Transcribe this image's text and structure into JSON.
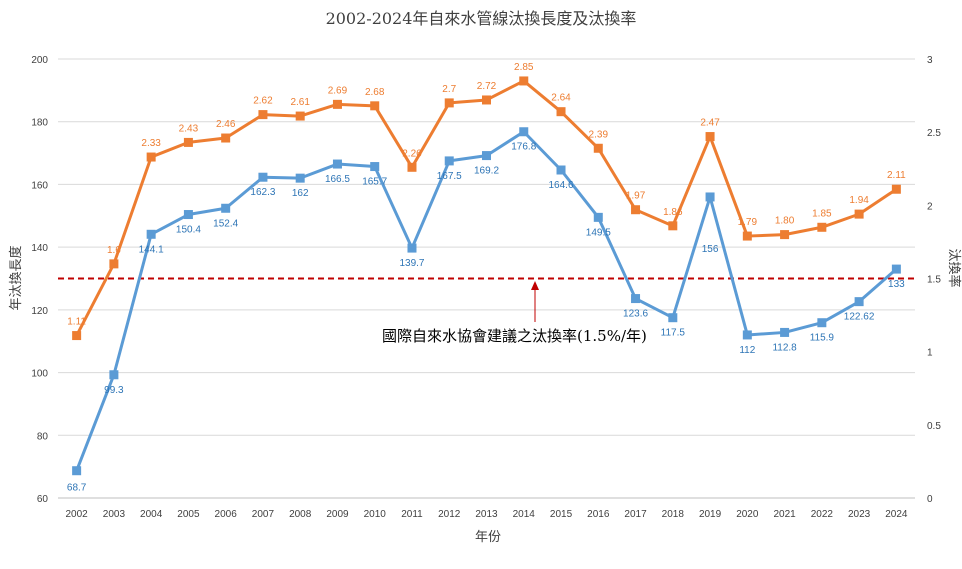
{
  "chart_data": {
    "type": "line",
    "title": "2002-2024年自來水管線汰換長度及汰換率",
    "xlabel": "年份",
    "ylabel": "年汰換長度",
    "y2label": "汰換率",
    "categories": [
      "2002",
      "2003",
      "2004",
      "2005",
      "2006",
      "2007",
      "2008",
      "2009",
      "2010",
      "2011",
      "2012",
      "2013",
      "2014",
      "2015",
      "2016",
      "2017",
      "2018",
      "2019",
      "2020",
      "2021",
      "2022",
      "2023",
      "2024"
    ],
    "ylim": [
      60,
      200
    ],
    "yticks": [
      60,
      80,
      100,
      120,
      140,
      160,
      180,
      200
    ],
    "y2lim": [
      0,
      3
    ],
    "y2ticks": [
      "0",
      "0.5",
      "1",
      "1.5",
      "2",
      "2.5",
      "3"
    ],
    "grid": true,
    "series": [
      {
        "axis": "left",
        "color": "#5b9bd5",
        "label_color": "#2e75b6",
        "values": [
          68.7,
          99.3,
          144.1,
          150.4,
          152.4,
          162.3,
          162,
          166.5,
          165.7,
          139.7,
          167.5,
          169.2,
          176.8,
          164.6,
          149.5,
          123.6,
          117.5,
          156,
          112,
          112.8,
          115.9,
          122.62,
          133
        ],
        "labels": [
          "68.7",
          "99.3",
          "144.1",
          "150.4",
          "152.4",
          "162.3",
          "162",
          "166.5",
          "165.7",
          "139.7",
          "167.5",
          "169.2",
          "176.8",
          "164.6",
          "149.5",
          "123.6",
          "117.5",
          "156",
          "112",
          "112.8",
          "115.9",
          "122.62",
          "133"
        ]
      },
      {
        "axis": "right",
        "color": "#ed7d31",
        "label_color": "#ed7d31",
        "values": [
          1.11,
          1.6,
          2.33,
          2.43,
          2.46,
          2.62,
          2.61,
          2.69,
          2.68,
          2.26,
          2.7,
          2.72,
          2.85,
          2.64,
          2.39,
          1.97,
          1.86,
          2.47,
          1.79,
          1.8,
          1.85,
          1.94,
          2.11
        ],
        "labels": [
          "1.11",
          "1.6",
          "2.33",
          "2.43",
          "2.46",
          "2.62",
          "2.61",
          "2.69",
          "2.68",
          "2.26",
          "2.7",
          "2.72",
          "2.85",
          "2.64",
          "2.39",
          "1.97",
          "1.86",
          "2.47",
          "1.79",
          "1.80",
          "1.85",
          "1.94",
          "2.11"
        ]
      }
    ],
    "reference_line": {
      "axis": "right",
      "value": 1.5,
      "color": "#c00000",
      "annotation": "國際自來水協會建議之汰換率(1.5%/年)"
    }
  }
}
